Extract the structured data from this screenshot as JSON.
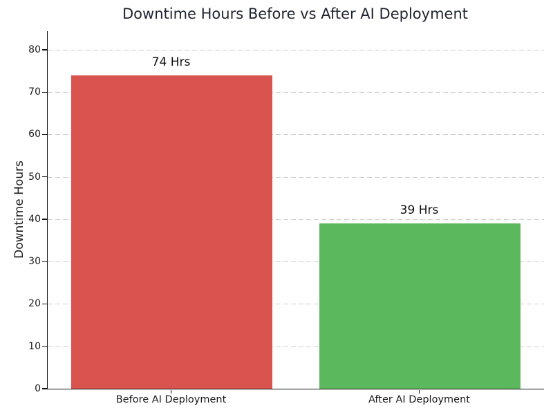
{
  "chart_data": {
    "type": "bar",
    "title": "Downtime Hours Before vs After AI Deployment",
    "xlabel": "",
    "ylabel": "Downtime Hours",
    "categories": [
      "Before AI Deployment",
      "After AI Deployment"
    ],
    "values": [
      74,
      39
    ],
    "bar_labels": [
      "74 Hrs",
      "39 Hrs"
    ],
    "bar_colors": [
      "#d9534f",
      "#5cb85c"
    ],
    "yticks": [
      0,
      10,
      20,
      30,
      40,
      50,
      60,
      70,
      80
    ],
    "ylim": [
      0,
      84.4
    ],
    "grid": "horizontal-dashed",
    "grid_color": "#cccccc",
    "title_color": "#1e2430",
    "legend_position": "none"
  }
}
